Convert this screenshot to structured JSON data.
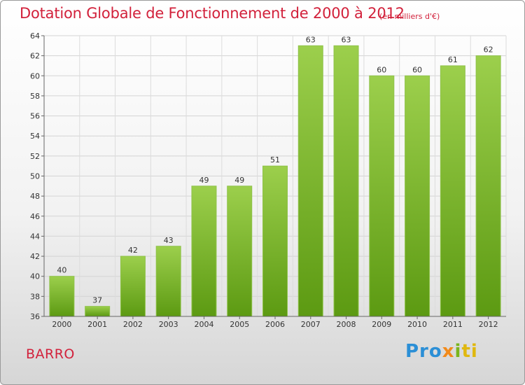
{
  "chart_data": {
    "type": "bar",
    "title": "Dotation Globale de Fonctionnement de 2000 à 2012",
    "subtitle": "(en milliers d'€)",
    "categories": [
      "2000",
      "2001",
      "2002",
      "2003",
      "2004",
      "2005",
      "2006",
      "2007",
      "2008",
      "2009",
      "2010",
      "2011",
      "2012"
    ],
    "values": [
      40,
      37,
      42,
      43,
      49,
      49,
      51,
      63,
      63,
      60,
      60,
      61,
      62
    ],
    "ylim": [
      36,
      64
    ],
    "yticks": [
      36,
      38,
      40,
      42,
      44,
      46,
      48,
      50,
      52,
      54,
      56,
      58,
      60,
      62,
      64
    ],
    "xlabel": "",
    "ylabel": "",
    "grid": true,
    "bar_color": "#7ab82d"
  },
  "commune": "BARRO",
  "logo": {
    "parts": [
      "Pro",
      "x",
      "i",
      "ti"
    ],
    "name": "Proxiti"
  }
}
